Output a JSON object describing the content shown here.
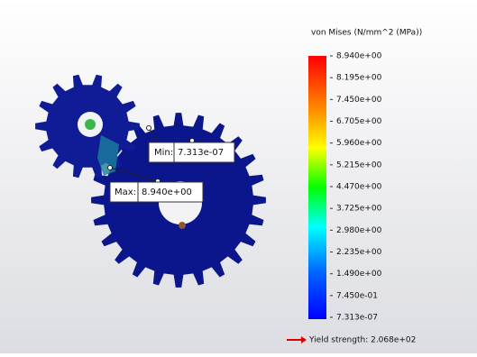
{
  "legend": {
    "title": "von Mises (N/mm^2 (MPa))",
    "ticks": [
      "8.940e+00",
      "8.195e+00",
      "7.450e+00",
      "6.705e+00",
      "5.960e+00",
      "5.215e+00",
      "4.470e+00",
      "3.725e+00",
      "2.980e+00",
      "2.235e+00",
      "1.490e+00",
      "7.450e-01",
      "7.313e-07"
    ]
  },
  "probes": {
    "min": {
      "label": "Min:",
      "value": "7.313e-07"
    },
    "max": {
      "label": "Max:",
      "value": "8.940e+00"
    }
  },
  "yield": "Yield strength: 2.068e+02"
}
